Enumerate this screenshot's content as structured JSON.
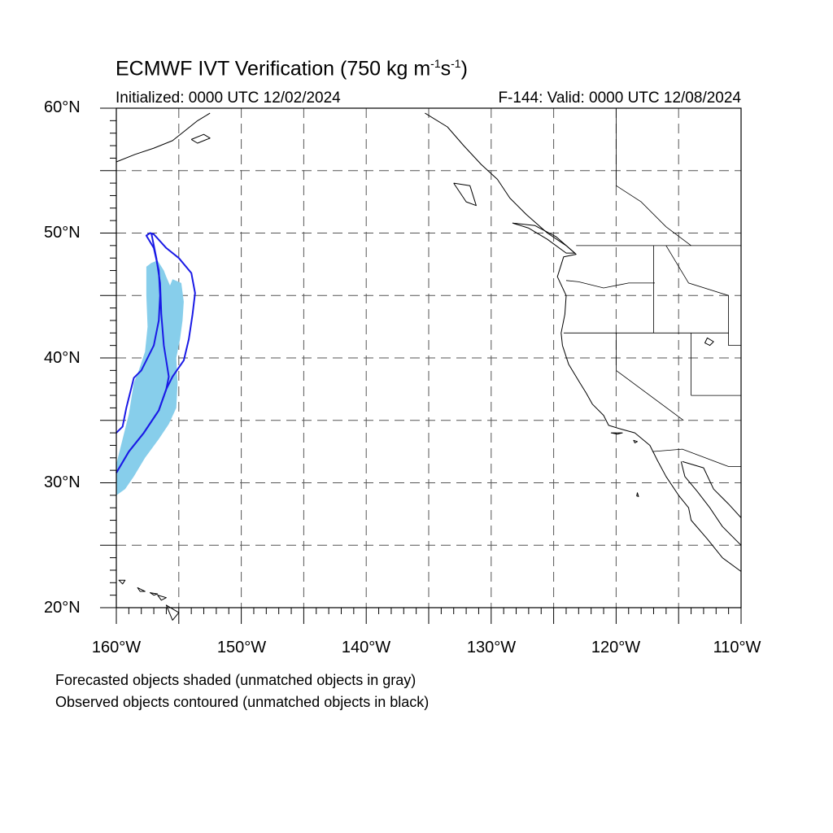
{
  "title": {
    "prefix": "ECMWF IVT Verification (750 kg m",
    "exp1": "-1",
    "mid": "s",
    "exp2": "-1",
    "suffix": ")"
  },
  "initialized": "Initialized: 0000 UTC 12/02/2024",
  "valid": "F-144: Valid: 0000 UTC 12/08/2024",
  "axes": {
    "y_labels": [
      "60°N",
      "50°N",
      "40°N",
      "30°N",
      "20°N"
    ],
    "x_labels": [
      "160°W",
      "150°W",
      "140°W",
      "130°W",
      "120°W",
      "110°W"
    ],
    "lon_range": [
      -160,
      -110
    ],
    "lat_range": [
      20,
      60
    ],
    "grid_interval_deg": 5,
    "grid_style": "dashed"
  },
  "notes": {
    "forecast": "Forecasted objects shaded (unmatched objects in gray)",
    "observed": "Observed objects contoured (unmatched objects in black)"
  },
  "colors": {
    "forecast_fill": "#87ceeb",
    "observed_contour": "#1a1ae6",
    "coastline": "#000000",
    "grid": "#555555"
  },
  "forecast_object": {
    "outline": [
      [
        -160.0,
        29.0
      ],
      [
        -159.3,
        29.5
      ],
      [
        -158.6,
        30.5
      ],
      [
        -157.7,
        32.0
      ],
      [
        -156.6,
        33.5
      ],
      [
        -155.8,
        34.7
      ],
      [
        -155.2,
        36.0
      ],
      [
        -155.1,
        38.0
      ],
      [
        -155.2,
        40.0
      ],
      [
        -154.9,
        41.5
      ],
      [
        -154.7,
        43.0
      ],
      [
        -154.6,
        44.5
      ],
      [
        -154.8,
        46.0
      ],
      [
        -155.5,
        46.3
      ],
      [
        -155.7,
        45.8
      ],
      [
        -156.0,
        46.5
      ],
      [
        -156.2,
        47.0
      ],
      [
        -156.7,
        47.8
      ],
      [
        -157.2,
        47.6
      ],
      [
        -157.6,
        47.3
      ],
      [
        -157.6,
        45.0
      ],
      [
        -157.5,
        42.5
      ],
      [
        -157.7,
        40.5
      ],
      [
        -158.2,
        39.0
      ],
      [
        -158.6,
        38.0
      ],
      [
        -159.0,
        35.5
      ],
      [
        -159.5,
        33.5
      ],
      [
        -160.0,
        31.5
      ]
    ]
  },
  "observed_object": {
    "outline": [
      [
        -160.0,
        30.8
      ],
      [
        -159.0,
        32.5
      ],
      [
        -157.8,
        34.0
      ],
      [
        -156.6,
        35.8
      ],
      [
        -156.0,
        37.5
      ],
      [
        -155.5,
        38.5
      ],
      [
        -154.6,
        39.8
      ],
      [
        -154.2,
        41.5
      ],
      [
        -153.9,
        43.5
      ],
      [
        -153.7,
        45.2
      ],
      [
        -154.0,
        46.8
      ],
      [
        -155.0,
        48.0
      ],
      [
        -156.0,
        48.8
      ],
      [
        -157.0,
        49.9
      ],
      [
        -157.3,
        50.0
      ],
      [
        -157.6,
        49.8
      ],
      [
        -157.0,
        48.8
      ],
      [
        -156.6,
        47.0
      ],
      [
        -156.5,
        45.0
      ],
      [
        -156.6,
        43.0
      ],
      [
        -157.0,
        41.0
      ],
      [
        -158.0,
        39.0
      ],
      [
        -158.6,
        38.4
      ],
      [
        -159.2,
        36.0
      ],
      [
        -159.5,
        34.5
      ],
      [
        -160.0,
        34.0
      ]
    ],
    "axis_line": [
      [
        -160.0,
        30.8
      ],
      [
        -159.0,
        32.5
      ],
      [
        -157.8,
        34.0
      ],
      [
        -156.6,
        35.8
      ],
      [
        -156.0,
        37.5
      ],
      [
        -155.8,
        38.5
      ],
      [
        -156.2,
        41.0
      ],
      [
        -156.4,
        43.5
      ],
      [
        -156.5,
        46.0
      ],
      [
        -156.8,
        48.0
      ],
      [
        -157.2,
        50.0
      ]
    ]
  },
  "coastlines": {
    "north_america_west": [
      [
        -135.3,
        59.6
      ],
      [
        -133.5,
        58.5
      ],
      [
        -132.2,
        57.0
      ],
      [
        -130.8,
        55.5
      ],
      [
        -129.5,
        54.3
      ],
      [
        -128.5,
        52.8
      ],
      [
        -127.2,
        51.5
      ],
      [
        -125.5,
        50.0
      ],
      [
        -124.0,
        49.0
      ],
      [
        -123.2,
        48.3
      ],
      [
        -124.2,
        48.1
      ],
      [
        -124.7,
        46.5
      ],
      [
        -124.0,
        45.0
      ],
      [
        -124.1,
        43.5
      ],
      [
        -124.4,
        42.0
      ],
      [
        -124.3,
        41.0
      ],
      [
        -123.8,
        39.5
      ],
      [
        -122.9,
        38.0
      ],
      [
        -122.4,
        37.2
      ],
      [
        -121.9,
        36.3
      ],
      [
        -121.0,
        35.4
      ],
      [
        -120.6,
        34.6
      ],
      [
        -119.6,
        34.3
      ],
      [
        -118.5,
        34.0
      ],
      [
        -117.3,
        33.0
      ],
      [
        -116.7,
        31.8
      ],
      [
        -116.0,
        30.5
      ],
      [
        -115.0,
        29.0
      ],
      [
        -114.2,
        28.0
      ],
      [
        -114.0,
        27.0
      ],
      [
        -112.7,
        25.5
      ],
      [
        -111.5,
        24.0
      ],
      [
        -110.0,
        22.9
      ]
    ],
    "gulf_of_california": [
      [
        -114.8,
        31.7
      ],
      [
        -114.5,
        30.5
      ],
      [
        -113.5,
        29.3
      ],
      [
        -112.5,
        28.0
      ],
      [
        -111.5,
        26.5
      ],
      [
        -110.0,
        25.0
      ]
    ],
    "gulf_inner": [
      [
        -114.7,
        31.7
      ],
      [
        -113.0,
        31.2
      ],
      [
        -112.2,
        29.5
      ],
      [
        -111.0,
        28.3
      ],
      [
        -110.0,
        27.2
      ]
    ],
    "alaska_south": [
      [
        -160.0,
        55.7
      ],
      [
        -158.5,
        56.3
      ],
      [
        -157.0,
        56.8
      ],
      [
        -155.5,
        57.4
      ],
      [
        -154.5,
        58.2
      ],
      [
        -153.5,
        59.0
      ],
      [
        -152.5,
        59.6
      ]
    ],
    "kodiak": [
      [
        -154.0,
        57.5
      ],
      [
        -153.0,
        57.9
      ],
      [
        -152.5,
        57.6
      ],
      [
        -153.5,
        57.2
      ],
      [
        -154.0,
        57.5
      ]
    ],
    "vancouver_island": [
      [
        -128.3,
        50.8
      ],
      [
        -127.0,
        50.4
      ],
      [
        -125.5,
        49.5
      ],
      [
        -124.0,
        48.4
      ],
      [
        -123.3,
        48.4
      ],
      [
        -124.8,
        49.7
      ],
      [
        -126.5,
        50.6
      ],
      [
        -128.3,
        50.8
      ]
    ],
    "haida_gwaii": [
      [
        -133.0,
        54.0
      ],
      [
        -131.7,
        53.8
      ],
      [
        -131.2,
        52.2
      ],
      [
        -132.0,
        52.5
      ],
      [
        -133.0,
        54.0
      ]
    ]
  },
  "borders": {
    "us_canada": [
      [
        -123.2,
        49.0
      ],
      [
        -110.0,
        49.0
      ]
    ],
    "bc_alberta": [
      [
        -120.0,
        60.0
      ],
      [
        -120.0,
        53.8
      ],
      [
        -118.0,
        52.5
      ],
      [
        -116.0,
        50.5
      ],
      [
        -114.0,
        49.0
      ]
    ],
    "wa_or": [
      [
        -124.0,
        46.2
      ],
      [
        -123.0,
        46.1
      ],
      [
        -121.0,
        45.6
      ],
      [
        -119.0,
        46.0
      ],
      [
        -116.9,
        46.0
      ]
    ],
    "or_ca_nv": [
      [
        -124.2,
        42.0
      ],
      [
        -111.0,
        42.0
      ]
    ],
    "id_wa": [
      [
        -117.0,
        49.0
      ],
      [
        -117.0,
        42.0
      ]
    ],
    "id_mt": [
      [
        -116.0,
        49.0
      ],
      [
        -114.2,
        46.0
      ],
      [
        -111.0,
        45.0
      ]
    ],
    "ca_nv": [
      [
        -120.0,
        42.0
      ],
      [
        -120.0,
        39.0
      ],
      [
        -114.6,
        35.0
      ]
    ],
    "nv_ut": [
      [
        -114.0,
        42.0
      ],
      [
        -114.0,
        37.0
      ]
    ],
    "ut_az": [
      [
        -114.0,
        37.0
      ],
      [
        -110.0,
        37.0
      ]
    ],
    "us_mexico": [
      [
        -117.1,
        32.5
      ],
      [
        -114.7,
        32.7
      ],
      [
        -111.0,
        31.3
      ],
      [
        -110.0,
        31.3
      ]
    ],
    "wy_border": [
      [
        -111.0,
        45.0
      ],
      [
        -111.0,
        41.0
      ],
      [
        -110.0,
        41.0
      ]
    ]
  },
  "islands": {
    "hawaii": [
      [
        [
          -159.8,
          22.2
        ],
        [
          -159.3,
          22.2
        ],
        [
          -159.5,
          21.9
        ],
        [
          -159.8,
          22.2
        ]
      ],
      [
        [
          -158.3,
          21.6
        ],
        [
          -157.7,
          21.3
        ],
        [
          -158.1,
          21.3
        ],
        [
          -158.3,
          21.6
        ]
      ],
      [
        [
          -157.3,
          21.2
        ],
        [
          -156.7,
          21.1
        ],
        [
          -157.0,
          21.0
        ],
        [
          -157.3,
          21.2
        ]
      ],
      [
        [
          -156.7,
          21.0
        ],
        [
          -156.0,
          20.8
        ],
        [
          -156.4,
          20.6
        ],
        [
          -156.7,
          21.0
        ]
      ],
      [
        [
          -156.0,
          20.2
        ],
        [
          -155.0,
          19.6
        ],
        [
          -155.5,
          19.0
        ],
        [
          -156.0,
          20.2
        ]
      ]
    ],
    "channel_islands": [
      [
        [
          -120.4,
          34.0
        ],
        [
          -119.5,
          34.0
        ],
        [
          -119.9,
          33.9
        ],
        [
          -120.4,
          34.0
        ]
      ],
      [
        [
          -118.6,
          33.4
        ],
        [
          -118.3,
          33.3
        ],
        [
          -118.5,
          33.2
        ],
        [
          -118.6,
          33.4
        ]
      ]
    ],
    "guadalupe": [
      [
        [
          -118.3,
          29.2
        ],
        [
          -118.2,
          28.9
        ],
        [
          -118.35,
          28.95
        ],
        [
          -118.3,
          29.2
        ]
      ]
    ]
  },
  "lakes": {
    "great_salt_lake": [
      [
        -112.7,
        41.6
      ],
      [
        -112.2,
        41.3
      ],
      [
        -112.5,
        41.0
      ],
      [
        -112.9,
        41.2
      ],
      [
        -112.7,
        41.6
      ]
    ]
  }
}
